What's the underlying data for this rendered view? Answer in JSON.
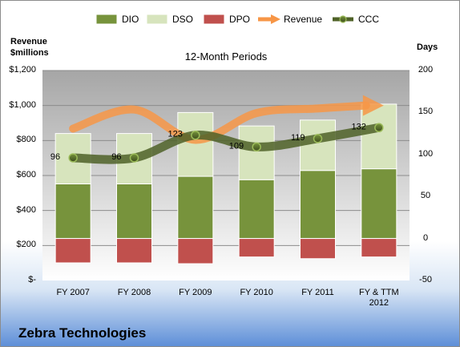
{
  "chart_data": {
    "type": "bar",
    "title": "12-Month Periods",
    "company": "Zebra Technologies",
    "left_axis_label": [
      "Revenue",
      "$millions"
    ],
    "right_axis_label": "Days",
    "categories": [
      "FY 2007",
      "FY 2008",
      "FY 2009",
      "FY 2010",
      "FY 2011",
      "FY & TTM\n2012"
    ],
    "left_axis": {
      "ylim": [
        0,
        1200
      ],
      "ticks": [
        0,
        200,
        400,
        600,
        800,
        1000,
        1200
      ],
      "tick_labels": [
        "$-",
        "$200",
        "$400",
        "$600",
        "$800",
        "$1,000",
        "$1,200"
      ]
    },
    "right_axis": {
      "ylim": [
        -50,
        200
      ],
      "ticks": [
        -50,
        0,
        50,
        100,
        150,
        200
      ],
      "tick_labels": [
        "-50",
        "0",
        "50",
        "100",
        "150",
        "200"
      ]
    },
    "series": [
      {
        "name": "DIO",
        "kind": "bar",
        "color": "#77933c",
        "axis": "right",
        "values": [
          65,
          65,
          74,
          70,
          81,
          83
        ]
      },
      {
        "name": "DSO",
        "kind": "bar",
        "color": "#d7e4bd",
        "axis": "right",
        "values": [
          60,
          60,
          76,
          64,
          60,
          77
        ]
      },
      {
        "name": "DPO",
        "kind": "bar",
        "color": "#c0504d",
        "axis": "right",
        "values": [
          -29,
          -29,
          -30,
          -22,
          -24,
          -22
        ]
      },
      {
        "name": "Revenue",
        "kind": "arrow-line",
        "color": "#f79646",
        "axis": "left",
        "values": [
          868,
          977,
          804,
          957,
          983,
          1000
        ]
      },
      {
        "name": "CCC",
        "kind": "line",
        "color": "#4f6228",
        "axis": "right",
        "values": [
          96,
          96,
          123,
          109,
          119,
          132
        ]
      }
    ],
    "data_labels": [
      "96",
      "96",
      "123",
      "109",
      "119",
      "132"
    ],
    "grid": true,
    "legend": "top"
  }
}
